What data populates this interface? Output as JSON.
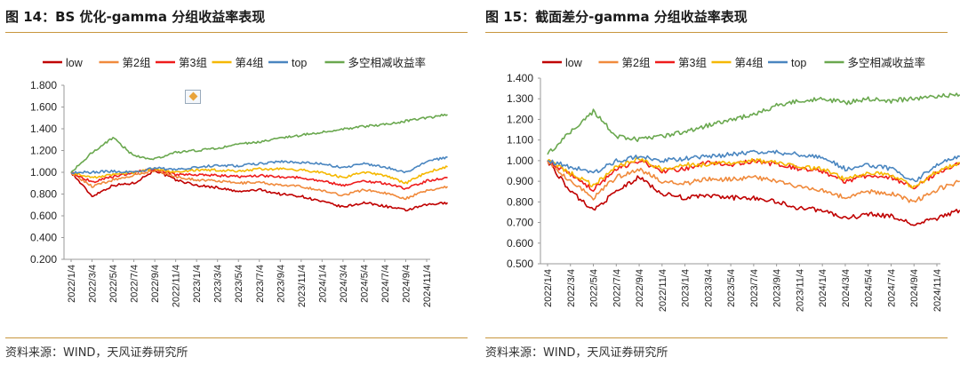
{
  "panels": [
    {
      "title": "图 14：BS 优化-gamma 分组收益率表现",
      "source": "资料来源：WIND，天风证券研究所"
    },
    {
      "title": "图 15：截面差分-gamma 分组收益率表现",
      "source": "资料来源：WIND，天风证券研究所"
    }
  ],
  "colors": {
    "low": "#c00000",
    "g2": "#f08a3c",
    "g3": "#ee1c1c",
    "g4": "#f5b800",
    "top": "#4a86c0",
    "ls": "#6aa84f",
    "rule": "#c8963e"
  },
  "chart_data": [
    {
      "type": "line",
      "title": "",
      "xlabel": "",
      "ylabel": "",
      "ylim": [
        0.2,
        1.8
      ],
      "yticks": [
        "0.200",
        "0.400",
        "0.600",
        "0.800",
        "1.000",
        "1.200",
        "1.400",
        "1.600",
        "1.800"
      ],
      "xticks": [
        "2022/1/4",
        "2022/3/4",
        "2022/5/4",
        "2022/7/4",
        "2022/9/4",
        "2022/11/4",
        "2023/1/4",
        "2023/3/4",
        "2023/5/4",
        "2023/7/4",
        "2023/9/4",
        "2023/11/4",
        "2024/1/4",
        "2024/3/4",
        "2024/5/4",
        "2024/7/4",
        "2024/9/4",
        "2024/11/4"
      ],
      "legend": "top",
      "grid": false,
      "series": [
        {
          "name": "low",
          "color": "low",
          "values": [
            1.0,
            0.78,
            0.88,
            0.9,
            1.02,
            0.93,
            0.88,
            0.86,
            0.82,
            0.84,
            0.8,
            0.78,
            0.73,
            0.68,
            0.72,
            0.69,
            0.65,
            0.7,
            0.72
          ]
        },
        {
          "name": "第2组",
          "color": "g2",
          "values": [
            1.0,
            0.87,
            0.93,
            0.97,
            1.02,
            0.96,
            0.93,
            0.92,
            0.9,
            0.91,
            0.88,
            0.87,
            0.83,
            0.79,
            0.84,
            0.81,
            0.76,
            0.83,
            0.87
          ]
        },
        {
          "name": "第3组",
          "color": "g3",
          "values": [
            1.0,
            0.91,
            0.96,
            1.0,
            1.03,
            0.98,
            0.98,
            0.97,
            0.96,
            0.97,
            0.96,
            0.95,
            0.92,
            0.88,
            0.92,
            0.9,
            0.85,
            0.92,
            0.95
          ]
        },
        {
          "name": "第4组",
          "color": "g4",
          "values": [
            1.0,
            0.95,
            0.98,
            1.0,
            1.03,
            1.0,
            1.02,
            1.02,
            1.01,
            1.03,
            1.03,
            1.02,
            1.0,
            0.95,
            1.0,
            0.97,
            0.9,
            1.0,
            1.05
          ]
        },
        {
          "name": "top",
          "color": "top",
          "values": [
            1.0,
            1.0,
            1.01,
            1.0,
            1.04,
            1.02,
            1.05,
            1.06,
            1.06,
            1.08,
            1.1,
            1.09,
            1.08,
            1.04,
            1.08,
            1.05,
            1.0,
            1.1,
            1.14
          ]
        },
        {
          "name": "多空相减收益率",
          "color": "ls",
          "values": [
            1.0,
            1.18,
            1.32,
            1.15,
            1.12,
            1.18,
            1.2,
            1.22,
            1.26,
            1.28,
            1.32,
            1.34,
            1.37,
            1.4,
            1.42,
            1.44,
            1.47,
            1.5,
            1.53
          ]
        }
      ]
    },
    {
      "type": "line",
      "title": "",
      "xlabel": "",
      "ylabel": "",
      "ylim": [
        0.5,
        1.4
      ],
      "yticks": [
        "0.500",
        "0.600",
        "0.700",
        "0.800",
        "0.900",
        "1.000",
        "1.100",
        "1.200",
        "1.300",
        "1.400"
      ],
      "xticks": [
        "2022/1/4",
        "2022/3/4",
        "2022/5/4",
        "2022/7/4",
        "2022/9/4",
        "2022/11/4",
        "2023/1/4",
        "2023/3/4",
        "2023/5/4",
        "2023/7/4",
        "2023/9/4",
        "2023/11/4",
        "2024/1/4",
        "2024/3/4",
        "2024/5/4",
        "2024/7/4",
        "2024/9/4",
        "2024/11/4"
      ],
      "legend": "top",
      "grid": false,
      "series": [
        {
          "name": "low",
          "color": "low",
          "values": [
            1.0,
            0.85,
            0.76,
            0.85,
            0.92,
            0.84,
            0.82,
            0.83,
            0.82,
            0.82,
            0.8,
            0.77,
            0.76,
            0.72,
            0.74,
            0.73,
            0.69,
            0.72,
            0.76
          ]
        },
        {
          "name": "第2组",
          "color": "g2",
          "values": [
            1.0,
            0.9,
            0.82,
            0.92,
            0.96,
            0.9,
            0.89,
            0.91,
            0.91,
            0.92,
            0.9,
            0.87,
            0.86,
            0.82,
            0.85,
            0.84,
            0.8,
            0.86,
            0.9
          ]
        },
        {
          "name": "第3组",
          "color": "g3",
          "values": [
            1.0,
            0.93,
            0.86,
            0.96,
            1.0,
            0.95,
            0.96,
            0.99,
            0.98,
            1.0,
            0.98,
            0.96,
            0.95,
            0.9,
            0.93,
            0.92,
            0.87,
            0.94,
            0.99
          ]
        },
        {
          "name": "第4组",
          "color": "g4",
          "values": [
            1.0,
            0.94,
            0.88,
            0.97,
            1.01,
            0.96,
            0.98,
            0.98,
            0.99,
            1.0,
            0.99,
            0.97,
            0.96,
            0.91,
            0.94,
            0.93,
            0.87,
            0.95,
            0.99
          ]
        },
        {
          "name": "top",
          "color": "top",
          "values": [
            1.0,
            0.97,
            0.94,
            1.0,
            1.02,
            1.0,
            1.01,
            1.02,
            1.03,
            1.04,
            1.04,
            1.03,
            1.02,
            0.96,
            0.98,
            0.96,
            0.9,
            0.98,
            1.02
          ]
        },
        {
          "name": "多空相减收益率",
          "color": "ls",
          "values": [
            1.03,
            1.14,
            1.24,
            1.12,
            1.1,
            1.12,
            1.14,
            1.17,
            1.2,
            1.22,
            1.27,
            1.29,
            1.3,
            1.28,
            1.3,
            1.29,
            1.3,
            1.31,
            1.32
          ]
        }
      ]
    }
  ]
}
